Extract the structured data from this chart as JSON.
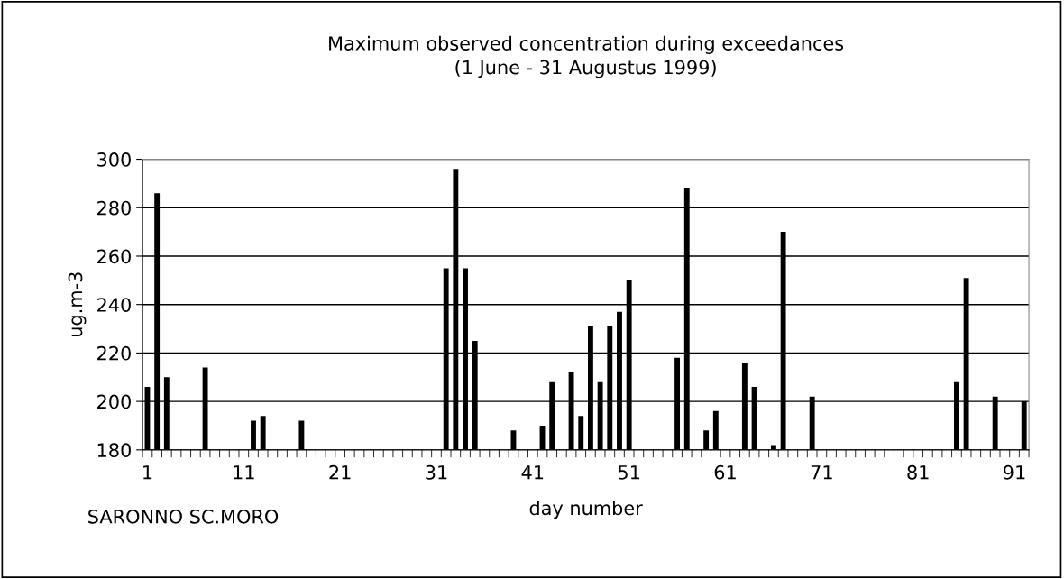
{
  "chart_data": {
    "type": "bar",
    "title": "Maximum observed concentration during exceedances\n(1 June - 31 Augustus 1999)",
    "xlabel": "day number",
    "ylabel": "ug.m-3",
    "annotations": [
      "SARONNO SC.MORO"
    ],
    "categories": [
      "1",
      null,
      null,
      null,
      null,
      null,
      null,
      null,
      null,
      null,
      "11",
      null,
      null,
      null,
      null,
      null,
      null,
      null,
      null,
      null,
      "21",
      null,
      null,
      null,
      null,
      null,
      null,
      null,
      null,
      null,
      "31",
      null,
      null,
      null,
      null,
      null,
      null,
      null,
      null,
      null,
      "41",
      null,
      null,
      null,
      null,
      null,
      null,
      null,
      null,
      null,
      "51",
      null,
      null,
      null,
      null,
      null,
      null,
      null,
      null,
      null,
      "61",
      null,
      null,
      null,
      null,
      null,
      null,
      null,
      null,
      null,
      "71",
      null,
      null,
      null,
      null,
      null,
      null,
      null,
      null,
      null,
      "81",
      null,
      null,
      null,
      null,
      null,
      null,
      null,
      null,
      null,
      "91",
      null
    ],
    "values": [
      206,
      286,
      210,
      null,
      null,
      null,
      214,
      null,
      null,
      null,
      null,
      192,
      194,
      null,
      null,
      null,
      192,
      null,
      null,
      null,
      null,
      null,
      null,
      null,
      null,
      null,
      null,
      null,
      null,
      null,
      null,
      255,
      296,
      255,
      225,
      null,
      null,
      null,
      188,
      null,
      null,
      190,
      208,
      null,
      212,
      194,
      231,
      208,
      231,
      237,
      250,
      null,
      null,
      null,
      null,
      218,
      288,
      null,
      188,
      196,
      null,
      null,
      216,
      206,
      null,
      182,
      270,
      null,
      null,
      202,
      null,
      null,
      null,
      null,
      null,
      null,
      null,
      null,
      null,
      null,
      null,
      null,
      null,
      null,
      208,
      251,
      null,
      null,
      202,
      null,
      null,
      200
    ],
    "color": "#000000",
    "ylim": [
      180,
      300
    ],
    "yticks": [
      180,
      200,
      220,
      240,
      260,
      280,
      300
    ],
    "grid": "y"
  }
}
